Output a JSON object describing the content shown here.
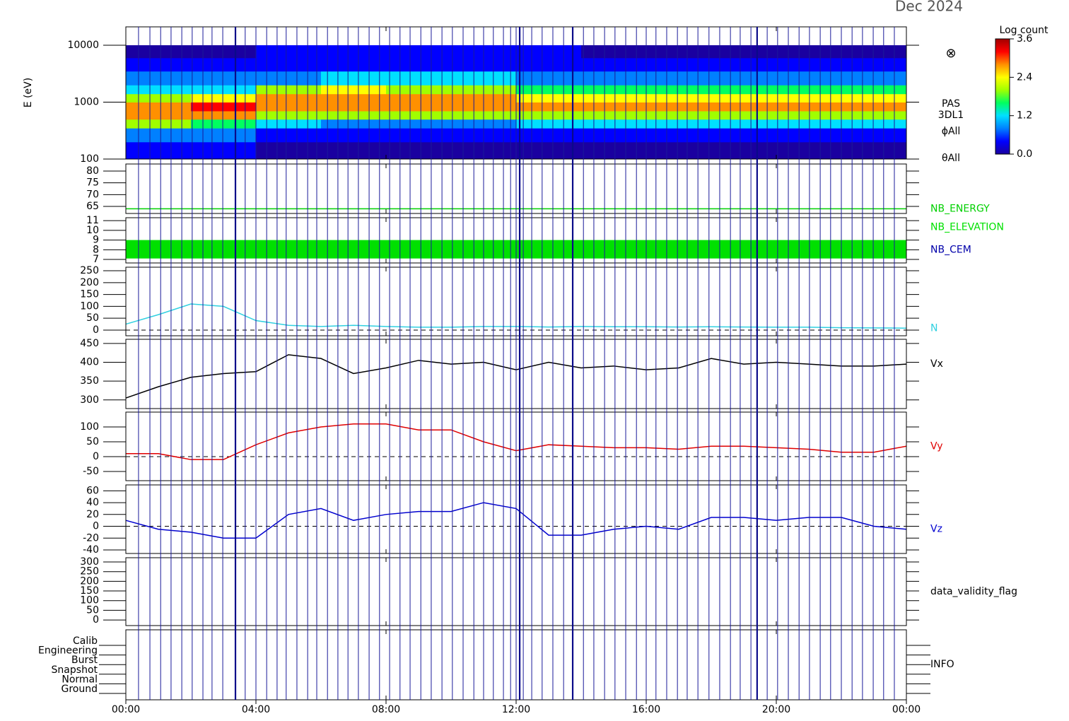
{
  "title": "Dec 2024",
  "x_axis": {
    "xlim": [
      0,
      24
    ],
    "xticks": [
      {
        "value": 0,
        "label": "00:00"
      },
      {
        "value": 4,
        "label": "04:00"
      },
      {
        "value": 8,
        "label": "08:00"
      },
      {
        "value": 12,
        "label": "12:00"
      },
      {
        "value": 16,
        "label": "16:00"
      },
      {
        "value": 20,
        "label": "20:00"
      },
      {
        "value": 24,
        "label": "00:00"
      }
    ]
  },
  "markers": [
    0.39,
    0.74,
    1.07,
    1.39,
    1.72,
    2.04,
    2.37,
    2.65,
    2.98,
    3.67,
    4.0,
    4.33,
    4.65,
    4.93,
    5.26,
    5.59,
    5.87,
    6.2,
    6.52,
    6.83,
    7.15,
    7.48,
    7.8,
    8.11,
    8.43,
    8.74,
    9.07,
    9.39,
    9.72,
    10.04,
    10.37,
    10.7,
    11.0,
    11.3,
    11.61,
    11.83,
    12.0,
    12.22,
    12.48,
    12.8,
    13.13,
    13.46,
    14.07,
    14.39,
    14.72,
    15.04,
    15.37,
    15.7,
    16.0,
    16.3,
    16.63,
    16.96,
    17.26,
    17.59,
    17.93,
    18.26,
    18.59,
    18.89,
    19.22,
    19.72,
    20.04,
    20.37,
    20.7,
    21.02,
    21.35,
    21.67,
    22.0,
    22.33,
    22.65,
    22.98,
    23.3,
    23.63
  ],
  "bold_markers": [
    3.37,
    12.11,
    13.74,
    19.41
  ],
  "chart_data": [
    {
      "type": "heatmap",
      "ylabel": "E (eV)",
      "log_y": true,
      "ylim": [
        100,
        21000
      ],
      "yticks": [
        100,
        1000,
        10000
      ],
      "x_edges": [
        0,
        2,
        4,
        6,
        8,
        10,
        12,
        14,
        16,
        18,
        20,
        22,
        24
      ],
      "y_edges": [
        100,
        200,
        350,
        500,
        700,
        1000,
        1400,
        2000,
        3500,
        6000,
        10000
      ],
      "z": [
        [
          0.2,
          0.6,
          1.8,
          3.0,
          2.6,
          1.8,
          1.0,
          0.6,
          0.3,
          0.1
        ],
        [
          0.2,
          0.6,
          1.6,
          2.8,
          3.1,
          2.2,
          1.2,
          0.7,
          0.3,
          0.1
        ],
        [
          0.1,
          0.4,
          1.0,
          2.0,
          2.8,
          3.0,
          1.8,
          0.9,
          0.4,
          0.2
        ],
        [
          0.1,
          0.3,
          0.8,
          1.8,
          2.6,
          2.8,
          2.2,
          1.2,
          0.5,
          0.2
        ],
        [
          0.1,
          0.3,
          0.9,
          1.9,
          2.6,
          2.7,
          2.0,
          1.0,
          0.4,
          0.2
        ],
        [
          0.1,
          0.3,
          0.9,
          2.0,
          2.6,
          2.6,
          2.0,
          1.1,
          0.4,
          0.2
        ],
        [
          0.1,
          0.3,
          1.0,
          2.0,
          2.7,
          2.5,
          1.6,
          0.8,
          0.3,
          0.2
        ],
        [
          0.1,
          0.3,
          1.0,
          2.1,
          2.6,
          2.4,
          1.5,
          0.8,
          0.3,
          0.1
        ],
        [
          0.1,
          0.3,
          1.0,
          2.1,
          2.6,
          2.4,
          1.5,
          0.8,
          0.3,
          0.1
        ],
        [
          0.1,
          0.3,
          1.0,
          2.1,
          2.6,
          2.4,
          1.5,
          0.8,
          0.3,
          0.1
        ],
        [
          0.1,
          0.3,
          1.0,
          2.1,
          2.6,
          2.4,
          1.5,
          0.8,
          0.3,
          0.1
        ],
        [
          0.1,
          0.3,
          1.0,
          2.1,
          2.6,
          2.4,
          1.5,
          0.8,
          0.3,
          0.1
        ]
      ],
      "zlim": [
        0,
        3.6
      ],
      "colormap": [
        "#1a00a0",
        "#0000ff",
        "#0080ff",
        "#00e0ff",
        "#00ff60",
        "#a0ff00",
        "#ffff00",
        "#ff9000",
        "#ff0000",
        "#a00000"
      ],
      "colorbar_title": "Log count",
      "colorbar_ticks": [
        {
          "value": 0,
          "label": "0.0"
        },
        {
          "value": 1.2,
          "label": "1.2"
        },
        {
          "value": 2.4,
          "label": "2.4"
        },
        {
          "value": 3.6,
          "label": "3.6"
        }
      ],
      "labels": [
        "PAS",
        "3DL1",
        "ϕAll",
        "θAll"
      ],
      "symbol": "⊗"
    },
    {
      "type": "line",
      "ylim": [
        62,
        83
      ],
      "yticks": [
        65,
        70,
        75,
        80
      ],
      "x": [
        0,
        24
      ],
      "series": [
        {
          "name": "NB_ENERGY",
          "color": "#00d000",
          "values": [
            64,
            64
          ]
        }
      ]
    },
    {
      "type": "band",
      "ylim": [
        6.64,
        11.3
      ],
      "yticks": [
        7,
        8,
        9,
        10,
        11
      ],
      "band_x": [
        0,
        24
      ],
      "band": [
        7.1,
        9
      ],
      "series": [
        {
          "name": "NB_ELEVATION",
          "color": "#00e000"
        },
        {
          "name": "NB_CEM",
          "color": "#0000aa"
        }
      ]
    },
    {
      "type": "line",
      "ylim": [
        -24,
        265
      ],
      "yticks": [
        0,
        50,
        100,
        150,
        200,
        250
      ],
      "zero_line": true,
      "x": [
        0,
        1,
        2,
        3,
        4,
        5,
        6,
        7,
        8,
        9,
        10,
        11,
        12,
        13,
        14,
        15,
        16,
        17,
        18,
        19,
        20,
        21,
        22,
        23,
        24
      ],
      "series": [
        {
          "name": "N",
          "color": "#30d0e0",
          "values": [
            25,
            65,
            110,
            100,
            40,
            20,
            15,
            20,
            15,
            12,
            12,
            15,
            15,
            13,
            15,
            14,
            14,
            13,
            14,
            13,
            12,
            12,
            10,
            9,
            8
          ]
        }
      ]
    },
    {
      "type": "line",
      "ylim": [
        277,
        461
      ],
      "yticks": [
        300,
        350,
        400,
        450
      ],
      "x": [
        0,
        1,
        2,
        3,
        4,
        5,
        6,
        7,
        8,
        9,
        10,
        11,
        12,
        13,
        14,
        15,
        16,
        17,
        18,
        19,
        20,
        21,
        22,
        23,
        24
      ],
      "series": [
        {
          "name": "Vx",
          "color": "#000000",
          "values": [
            305,
            335,
            360,
            370,
            375,
            420,
            410,
            370,
            385,
            405,
            395,
            400,
            380,
            400,
            385,
            390,
            380,
            385,
            410,
            395,
            400,
            395,
            390,
            390,
            395
          ]
        }
      ]
    },
    {
      "type": "line",
      "ylim": [
        -81,
        150
      ],
      "yticks": [
        -50,
        0,
        50,
        100
      ],
      "zero_line": true,
      "x": [
        0,
        1,
        2,
        3,
        4,
        5,
        6,
        7,
        8,
        9,
        10,
        11,
        12,
        13,
        14,
        15,
        16,
        17,
        18,
        19,
        20,
        21,
        22,
        23,
        24
      ],
      "series": [
        {
          "name": "Vy",
          "color": "#e00000",
          "values": [
            10,
            10,
            -10,
            -10,
            40,
            80,
            100,
            110,
            110,
            90,
            90,
            50,
            20,
            40,
            35,
            30,
            30,
            25,
            35,
            35,
            30,
            25,
            15,
            15,
            35
          ]
        }
      ]
    },
    {
      "type": "line",
      "ylim": [
        -46,
        70
      ],
      "yticks": [
        -40,
        -20,
        0,
        20,
        40,
        60
      ],
      "zero_line": true,
      "x": [
        0,
        1,
        2,
        3,
        4,
        5,
        6,
        7,
        8,
        9,
        10,
        11,
        12,
        13,
        14,
        15,
        16,
        17,
        18,
        19,
        20,
        21,
        22,
        23,
        24
      ],
      "series": [
        {
          "name": "Vz",
          "color": "#0000d0",
          "values": [
            10,
            -5,
            -10,
            -20,
            -20,
            20,
            30,
            10,
            20,
            25,
            25,
            40,
            30,
            -15,
            -15,
            -5,
            0,
            -5,
            15,
            15,
            10,
            15,
            15,
            0,
            -5
          ]
        }
      ]
    },
    {
      "type": "line",
      "ylim": [
        -29,
        322
      ],
      "yticks": [
        0,
        50,
        100,
        150,
        200,
        250,
        300
      ],
      "x": [],
      "series": [
        {
          "name": "data_validity_flag",
          "color": "#000000",
          "values": []
        }
      ]
    },
    {
      "type": "state",
      "categories": [
        "Calib",
        "Engineering",
        "Burst",
        "Snapshot",
        "Normal",
        "Ground"
      ],
      "label": "INFO"
    }
  ]
}
